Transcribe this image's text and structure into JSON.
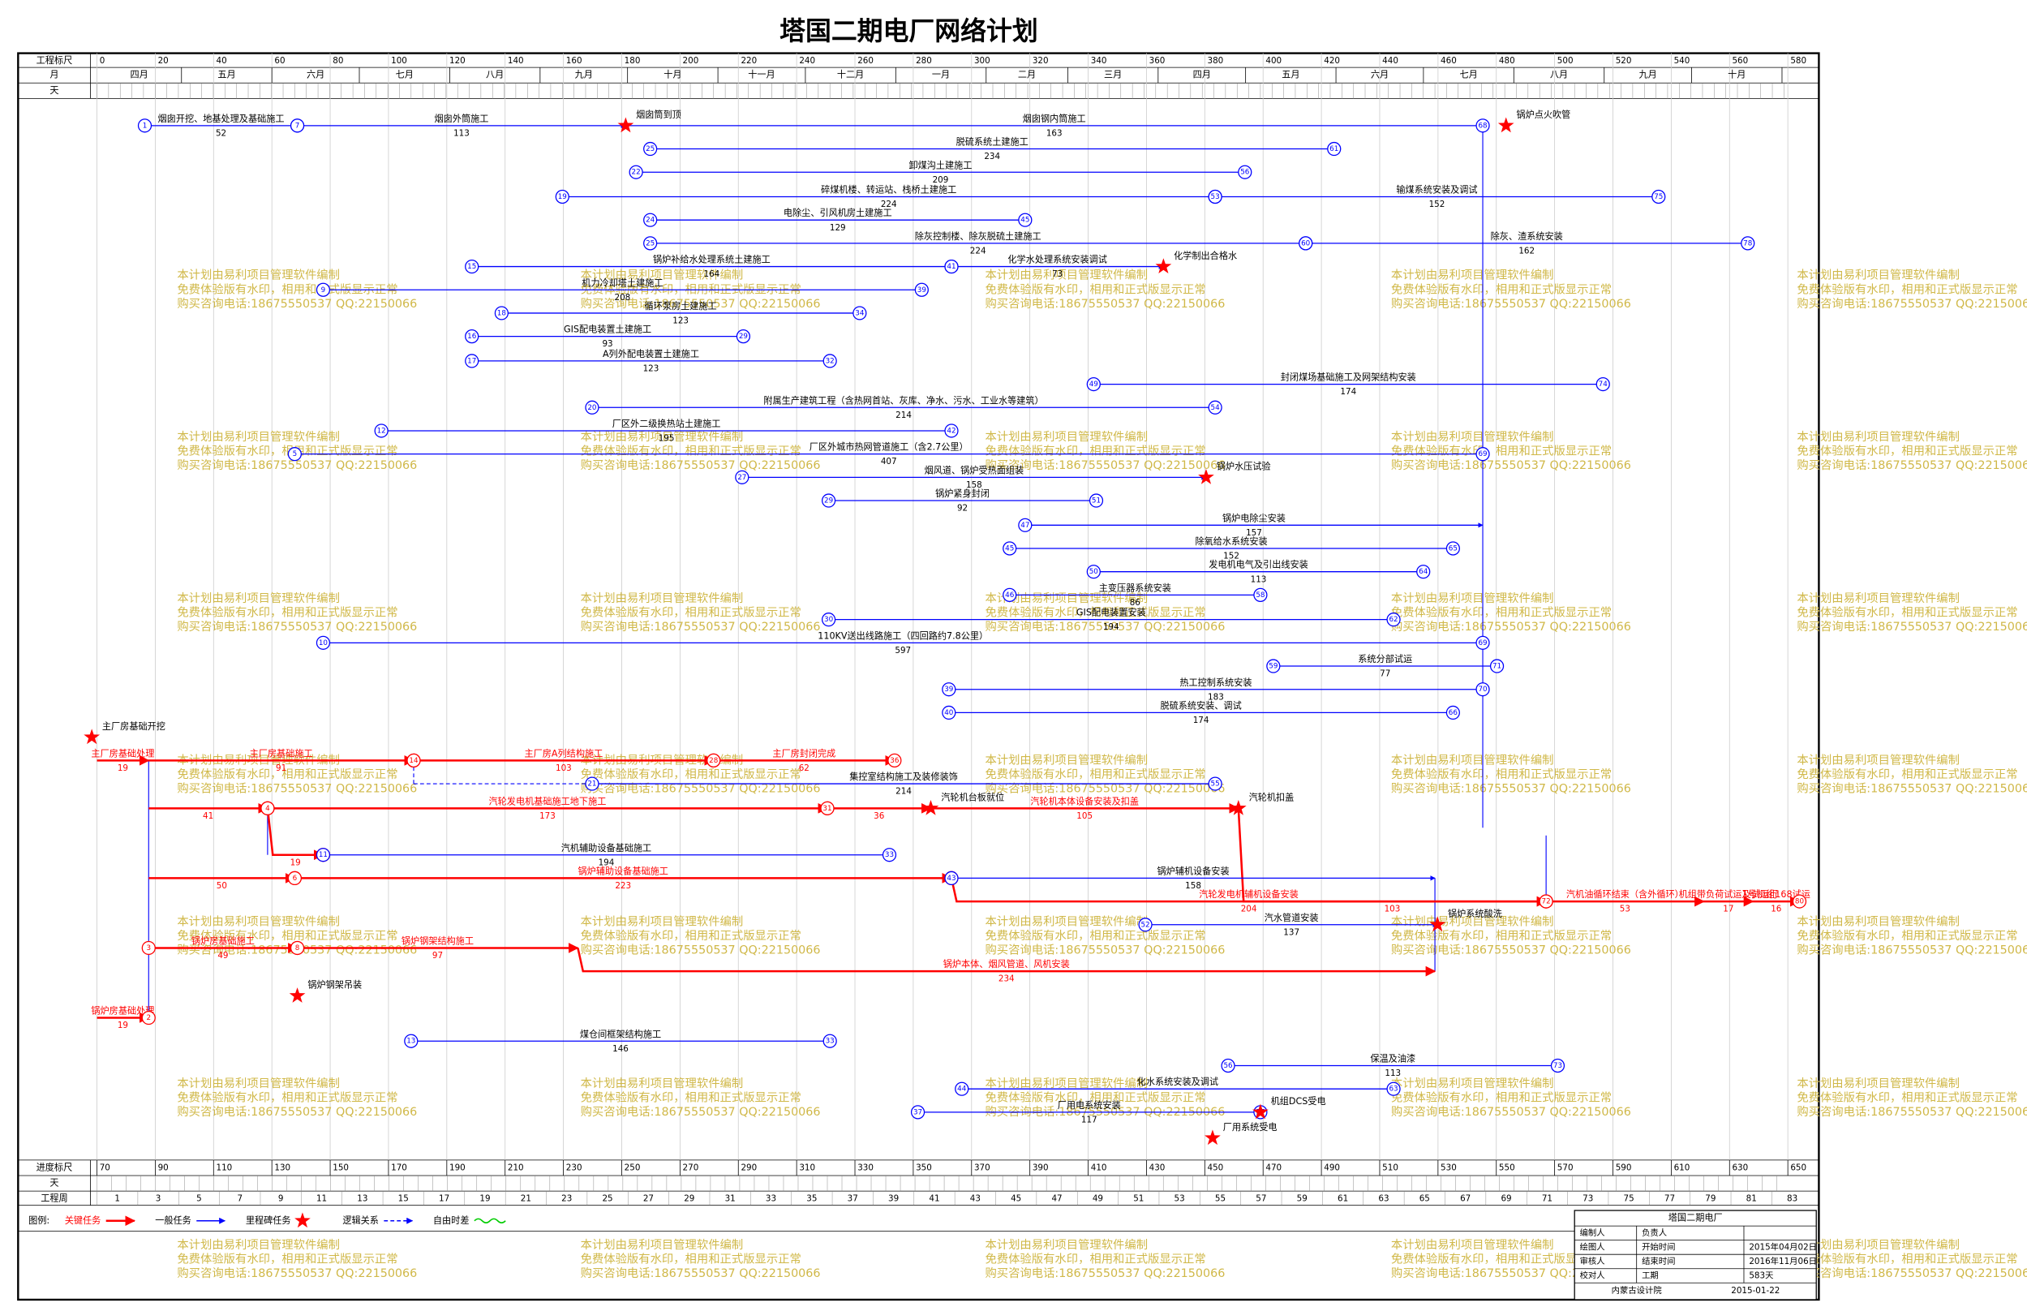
{
  "title": "塔国二期电厂网络计划",
  "top_scale": {
    "label": "工程标尺",
    "lim": [
      0,
      580
    ],
    "ticks": [
      0,
      20,
      40,
      60,
      80,
      100,
      120,
      140,
      160,
      180,
      200,
      220,
      240,
      260,
      280,
      300,
      320,
      340,
      360,
      380,
      400,
      420,
      440,
      460,
      480,
      500,
      520,
      540,
      560,
      580
    ]
  },
  "month_label": "月",
  "day_label": "天",
  "months": [
    "四月",
    "五月",
    "六月",
    "七月",
    "八月",
    "九月",
    "十月",
    "十一月",
    "十二月",
    "一月",
    "二月",
    "三月",
    "四月",
    "五月",
    "六月",
    "七月",
    "八月",
    "九月",
    "十月"
  ],
  "bottom_scale": {
    "label": "进度标尺",
    "lim": [
      70,
      650
    ],
    "ticks": [
      70,
      90,
      110,
      130,
      150,
      170,
      190,
      210,
      230,
      250,
      270,
      290,
      310,
      330,
      350,
      370,
      390,
      410,
      430,
      450,
      470,
      490,
      510,
      530,
      550,
      570,
      590,
      610,
      630,
      650
    ]
  },
  "week_label": "工程周",
  "weeks": [
    "1",
    "3",
    "5",
    "7",
    "9",
    "11",
    "13",
    "15",
    "17",
    "19",
    "21",
    "23",
    "25",
    "27",
    "29",
    "31",
    "33",
    "35",
    "37",
    "39",
    "41",
    "43",
    "45",
    "47",
    "49",
    "51",
    "53",
    "55",
    "57",
    "59",
    "61",
    "63",
    "65",
    "67",
    "69",
    "71",
    "73",
    "75",
    "77",
    "79",
    "81",
    "83"
  ],
  "tasks": [
    {
      "name": "烟囱开挖、地基处理及基础施工",
      "duration": 52,
      "from": "1",
      "to": "7",
      "kind": "normal"
    },
    {
      "name": "烟囱外筒施工",
      "duration": 113,
      "from": "7",
      "to": null,
      "kind": "normal"
    },
    {
      "name": "烟囱钢内筒施工",
      "duration": 163,
      "from": null,
      "to": "68",
      "kind": "normal"
    },
    {
      "name": "脱硫系统土建施工",
      "duration": 234,
      "from": "25",
      "to": "61",
      "kind": "normal"
    },
    {
      "name": "卸煤沟土建施工",
      "duration": 209,
      "from": "22",
      "to": "56",
      "kind": "normal"
    },
    {
      "name": "碎煤机楼、转运站、栈桥土建施工",
      "duration": 224,
      "from": "19",
      "to": "53",
      "kind": "normal"
    },
    {
      "name": "输煤系统安装及调试",
      "duration": 152,
      "from": "53",
      "to": "75",
      "kind": "normal"
    },
    {
      "name": "电除尘、引风机房土建施工",
      "duration": 129,
      "from": "24",
      "to": "45",
      "kind": "normal"
    },
    {
      "name": "除灰控制楼、除灰脱硫土建施工",
      "duration": 224,
      "from": "25",
      "to": "60",
      "kind": "normal"
    },
    {
      "name": "除灰、渣系统安装",
      "duration": 162,
      "from": "60",
      "to": "78",
      "kind": "normal"
    },
    {
      "name": "锅炉补给水处理系统土建施工",
      "duration": 164,
      "from": "15",
      "to": "41",
      "kind": "normal"
    },
    {
      "name": "化学水处理系统安装调试",
      "duration": 73,
      "from": "41",
      "to": null,
      "kind": "normal"
    },
    {
      "name": "机力冷却塔土建施工",
      "duration": 208,
      "from": "9",
      "to": "39",
      "kind": "normal"
    },
    {
      "name": "循环泵房土建施工",
      "duration": 123,
      "from": "18",
      "to": "34",
      "kind": "normal"
    },
    {
      "name": "GIS配电装置土建施工",
      "duration": 93,
      "from": "16",
      "to": "29",
      "kind": "normal"
    },
    {
      "name": "A列外配电装置土建施工",
      "duration": 123,
      "from": "17",
      "to": "32",
      "kind": "normal"
    },
    {
      "name": "封闭煤场基础施工及网架结构安装",
      "duration": 174,
      "from": "49",
      "to": "74",
      "kind": "normal"
    },
    {
      "name": "附属生产建筑工程（含热网首站、灰库、净水、污水、工业水等建筑）",
      "duration": 214,
      "from": "20",
      "to": "54",
      "kind": "normal"
    },
    {
      "name": "厂区外二级换热站土建施工",
      "duration": 195,
      "from": "12",
      "to": "42",
      "kind": "normal"
    },
    {
      "name": "厂区外城市热网管道施工（含2.7公里）",
      "duration": 407,
      "from": "5",
      "to": "69",
      "kind": "normal"
    },
    {
      "name": "烟风道、锅炉受热面组装",
      "duration": 158,
      "from": "27",
      "to": null,
      "kind": "normal"
    },
    {
      "name": "锅炉紧身封闭",
      "duration": 92,
      "from": "29",
      "to": "51",
      "kind": "normal"
    },
    {
      "name": "锅炉电除尘安装",
      "duration": 157,
      "from": "47",
      "to": null,
      "kind": "normal"
    },
    {
      "name": "除氧给水系统安装",
      "duration": 152,
      "from": "45",
      "to": "65",
      "kind": "normal"
    },
    {
      "name": "发电机电气及引出线安装",
      "duration": 113,
      "from": "50",
      "to": "64",
      "kind": "normal"
    },
    {
      "name": "主变压器系统安装",
      "duration": 86,
      "from": "46",
      "to": "58",
      "kind": "normal"
    },
    {
      "name": "GIS配电装置安装",
      "duration": 194,
      "from": "30",
      "to": "62",
      "kind": "normal"
    },
    {
      "name": "110KV送出线路施工（四回路约7.8公里）",
      "duration": 597,
      "from": "10",
      "to": "69",
      "kind": "normal"
    },
    {
      "name": "系统分部试运",
      "duration": 77,
      "from": "59",
      "to": "71",
      "kind": "normal"
    },
    {
      "name": "热工控制系统安装",
      "duration": 183,
      "from": "39",
      "to": "70",
      "kind": "normal"
    },
    {
      "name": "脱硫系统安装、调试",
      "duration": 174,
      "from": "40",
      "to": "66",
      "kind": "normal"
    },
    {
      "name": "主厂房基础处理",
      "duration": 19,
      "from": null,
      "to": null,
      "kind": "critical"
    },
    {
      "name": "主厂房基础施工",
      "duration": 91,
      "from": null,
      "to": "14",
      "kind": "critical"
    },
    {
      "name": "主厂房A列结构施工",
      "duration": 103,
      "from": "14",
      "to": "28",
      "kind": "critical"
    },
    {
      "name": "主厂房封闭完成",
      "duration": 62,
      "from": "28",
      "to": "36",
      "kind": "critical"
    },
    {
      "name": "集控室结构施工及装修装饰",
      "duration": 214,
      "from": "21",
      "to": "55",
      "kind": "normal"
    },
    {
      "name": null,
      "duration": 41,
      "from": null,
      "to": "4",
      "kind": "critical"
    },
    {
      "name": "汽轮发电机基础施工地下施工",
      "duration": 173,
      "from": "4",
      "to": "31",
      "kind": "critical"
    },
    {
      "name": null,
      "duration": 36,
      "from": "31",
      "to": null,
      "kind": "critical"
    },
    {
      "name": "汽轮机本体设备安装及扣盖",
      "duration": 105,
      "from": null,
      "to": null,
      "kind": "critical"
    },
    {
      "name": null,
      "duration": 103,
      "from": null,
      "to": "72",
      "kind": "critical"
    },
    {
      "name": null,
      "duration": 19,
      "from": "4",
      "to": "11",
      "kind": "critical"
    },
    {
      "name": "汽机辅助设备基础施工",
      "duration": 194,
      "from": "11",
      "to": "33",
      "kind": "normal"
    },
    {
      "name": null,
      "duration": 50,
      "from": null,
      "to": "6",
      "kind": "critical"
    },
    {
      "name": "锅炉辅助设备基础施工",
      "duration": 223,
      "from": "6",
      "to": "43",
      "kind": "critical"
    },
    {
      "name": "汽轮发电机辅机设备安装",
      "duration": 204,
      "from": "43",
      "to": "72",
      "kind": "critical"
    },
    {
      "name": "锅炉辅机设备安装",
      "duration": 158,
      "from": "43",
      "to": null,
      "kind": "normal"
    },
    {
      "name": "汽机油循环结束（含外循环）",
      "duration": 53,
      "from": "72",
      "to": null,
      "kind": "critical"
    },
    {
      "name": "机组带负荷试运及试运行",
      "duration": 17,
      "from": null,
      "to": null,
      "kind": "critical"
    },
    {
      "name": "1号机组168试运",
      "duration": 16,
      "from": null,
      "to": "80",
      "kind": "critical"
    },
    {
      "name": "锅炉房基础施工",
      "duration": 49,
      "from": "3",
      "to": "8",
      "kind": "critical"
    },
    {
      "name": "锅炉钢架结构施工",
      "duration": 97,
      "from": "8",
      "to": null,
      "kind": "critical"
    },
    {
      "name": "锅炉本体、烟风管道、风机安装",
      "duration": 234,
      "from": null,
      "to": null,
      "kind": "critical"
    },
    {
      "name": "汽水管道安装",
      "duration": 137,
      "from": "52",
      "to": null,
      "kind": "normal"
    },
    {
      "name": "锅炉房基础处理",
      "duration": 19,
      "from": null,
      "to": "2",
      "kind": "critical"
    },
    {
      "name": "煤仓间框架结构施工",
      "duration": 146,
      "from": "13",
      "to": "33",
      "kind": "normal"
    },
    {
      "name": "保温及油漆",
      "duration": 113,
      "from": "56",
      "to": "73",
      "kind": "normal"
    },
    {
      "name": "化水系统安装及调试",
      "duration": null,
      "from": "44",
      "to": "63",
      "kind": "normal"
    },
    {
      "name": "厂用电系统安装",
      "duration": 117,
      "from": "37",
      "to": "57",
      "kind": "normal"
    }
  ],
  "milestones": [
    "烟囱筒到顶",
    "化学制出合格水",
    "锅炉水压试验",
    "主厂房基础开挖",
    "汽轮机台板就位",
    "汽轮机扣盖",
    "锅炉钢架吊装",
    "锅炉系统酸洗",
    "机组DCS受电",
    "锅炉点火吹管",
    "厂用系统受电"
  ],
  "watermark": [
    "本计划由易利项目管理软件编制",
    "免费体验版有水印，相用和正式版显示正常",
    "购买咨询电话:18675550537 QQ:22150066"
  ],
  "legend": {
    "title": "图例:",
    "items": [
      "关键任务",
      "一般任务",
      "里程碑任务",
      "逻辑关系",
      "自由时差"
    ]
  },
  "title_block": {
    "project": "塔国二期电厂",
    "rows": [
      [
        "编制人",
        "负责人",
        ""
      ],
      [
        "绘图人",
        "开始时间",
        "2015年04月02日"
      ],
      [
        "审核人",
        "结束时间",
        "2016年11月06日"
      ],
      [
        "校对人",
        "工期",
        "583天"
      ]
    ],
    "org": "内蒙古设计院",
    "date": "2015-01-22"
  }
}
